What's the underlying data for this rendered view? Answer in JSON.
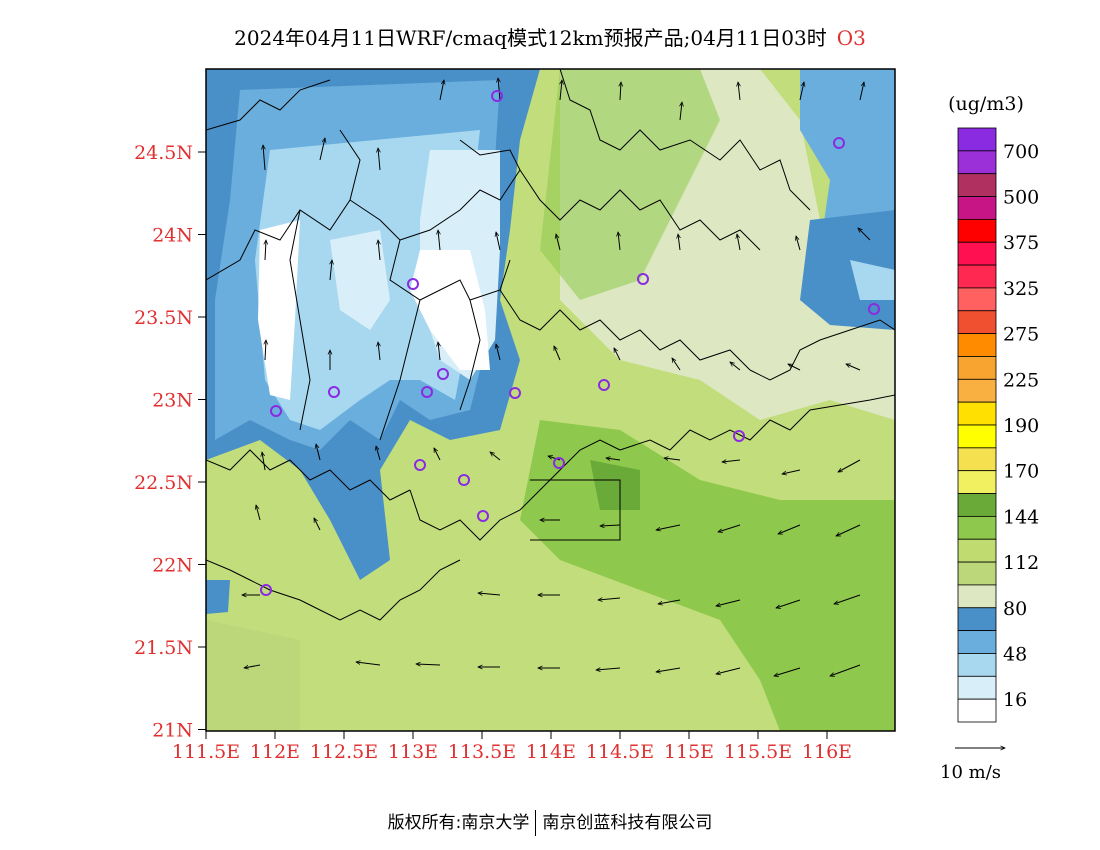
{
  "title": {
    "text": "2024年04月11日WRF/cmaq模式12km预报产品;04月11日03时",
    "species": "O3"
  },
  "map": {
    "lat_labels": [
      "24.5N",
      "24N",
      "23.5N",
      "23N",
      "22.5N",
      "22N",
      "21.5N",
      "21N"
    ],
    "lon_labels": [
      "111.5E",
      "112E",
      "112.5E",
      "113E",
      "113.5E",
      "114E",
      "114.5E",
      "115E",
      "115.5E",
      "116E"
    ],
    "label_color": "#e03030"
  },
  "legend": {
    "unit": "(ug/m3)",
    "levels": [
      "700",
      "500",
      "375",
      "325",
      "275",
      "225",
      "190",
      "170",
      "144",
      "112",
      "80",
      "48",
      "16"
    ],
    "colors": [
      "#8a2be2",
      "#9b30d9",
      "#b03060",
      "#c71585",
      "#ff0000",
      "#ff1050",
      "#ff2850",
      "#ff6060",
      "#f05030",
      "#ff8c00",
      "#f7a530",
      "#f9b040",
      "#ffe000",
      "#ffff00",
      "#f5e050",
      "#f0f060",
      "#6aaa38",
      "#8ec84c",
      "#c0dc70",
      "#bcd67a",
      "#dde8c2",
      "#4a90c8",
      "#6aaedd",
      "#a8d8f0",
      "#d8eef8",
      "#ffffff"
    ]
  },
  "wind": {
    "label": "10 m/s"
  },
  "footer": {
    "left": "版权所有:南京大学",
    "right": "南京创蓝科技有限公司"
  }
}
